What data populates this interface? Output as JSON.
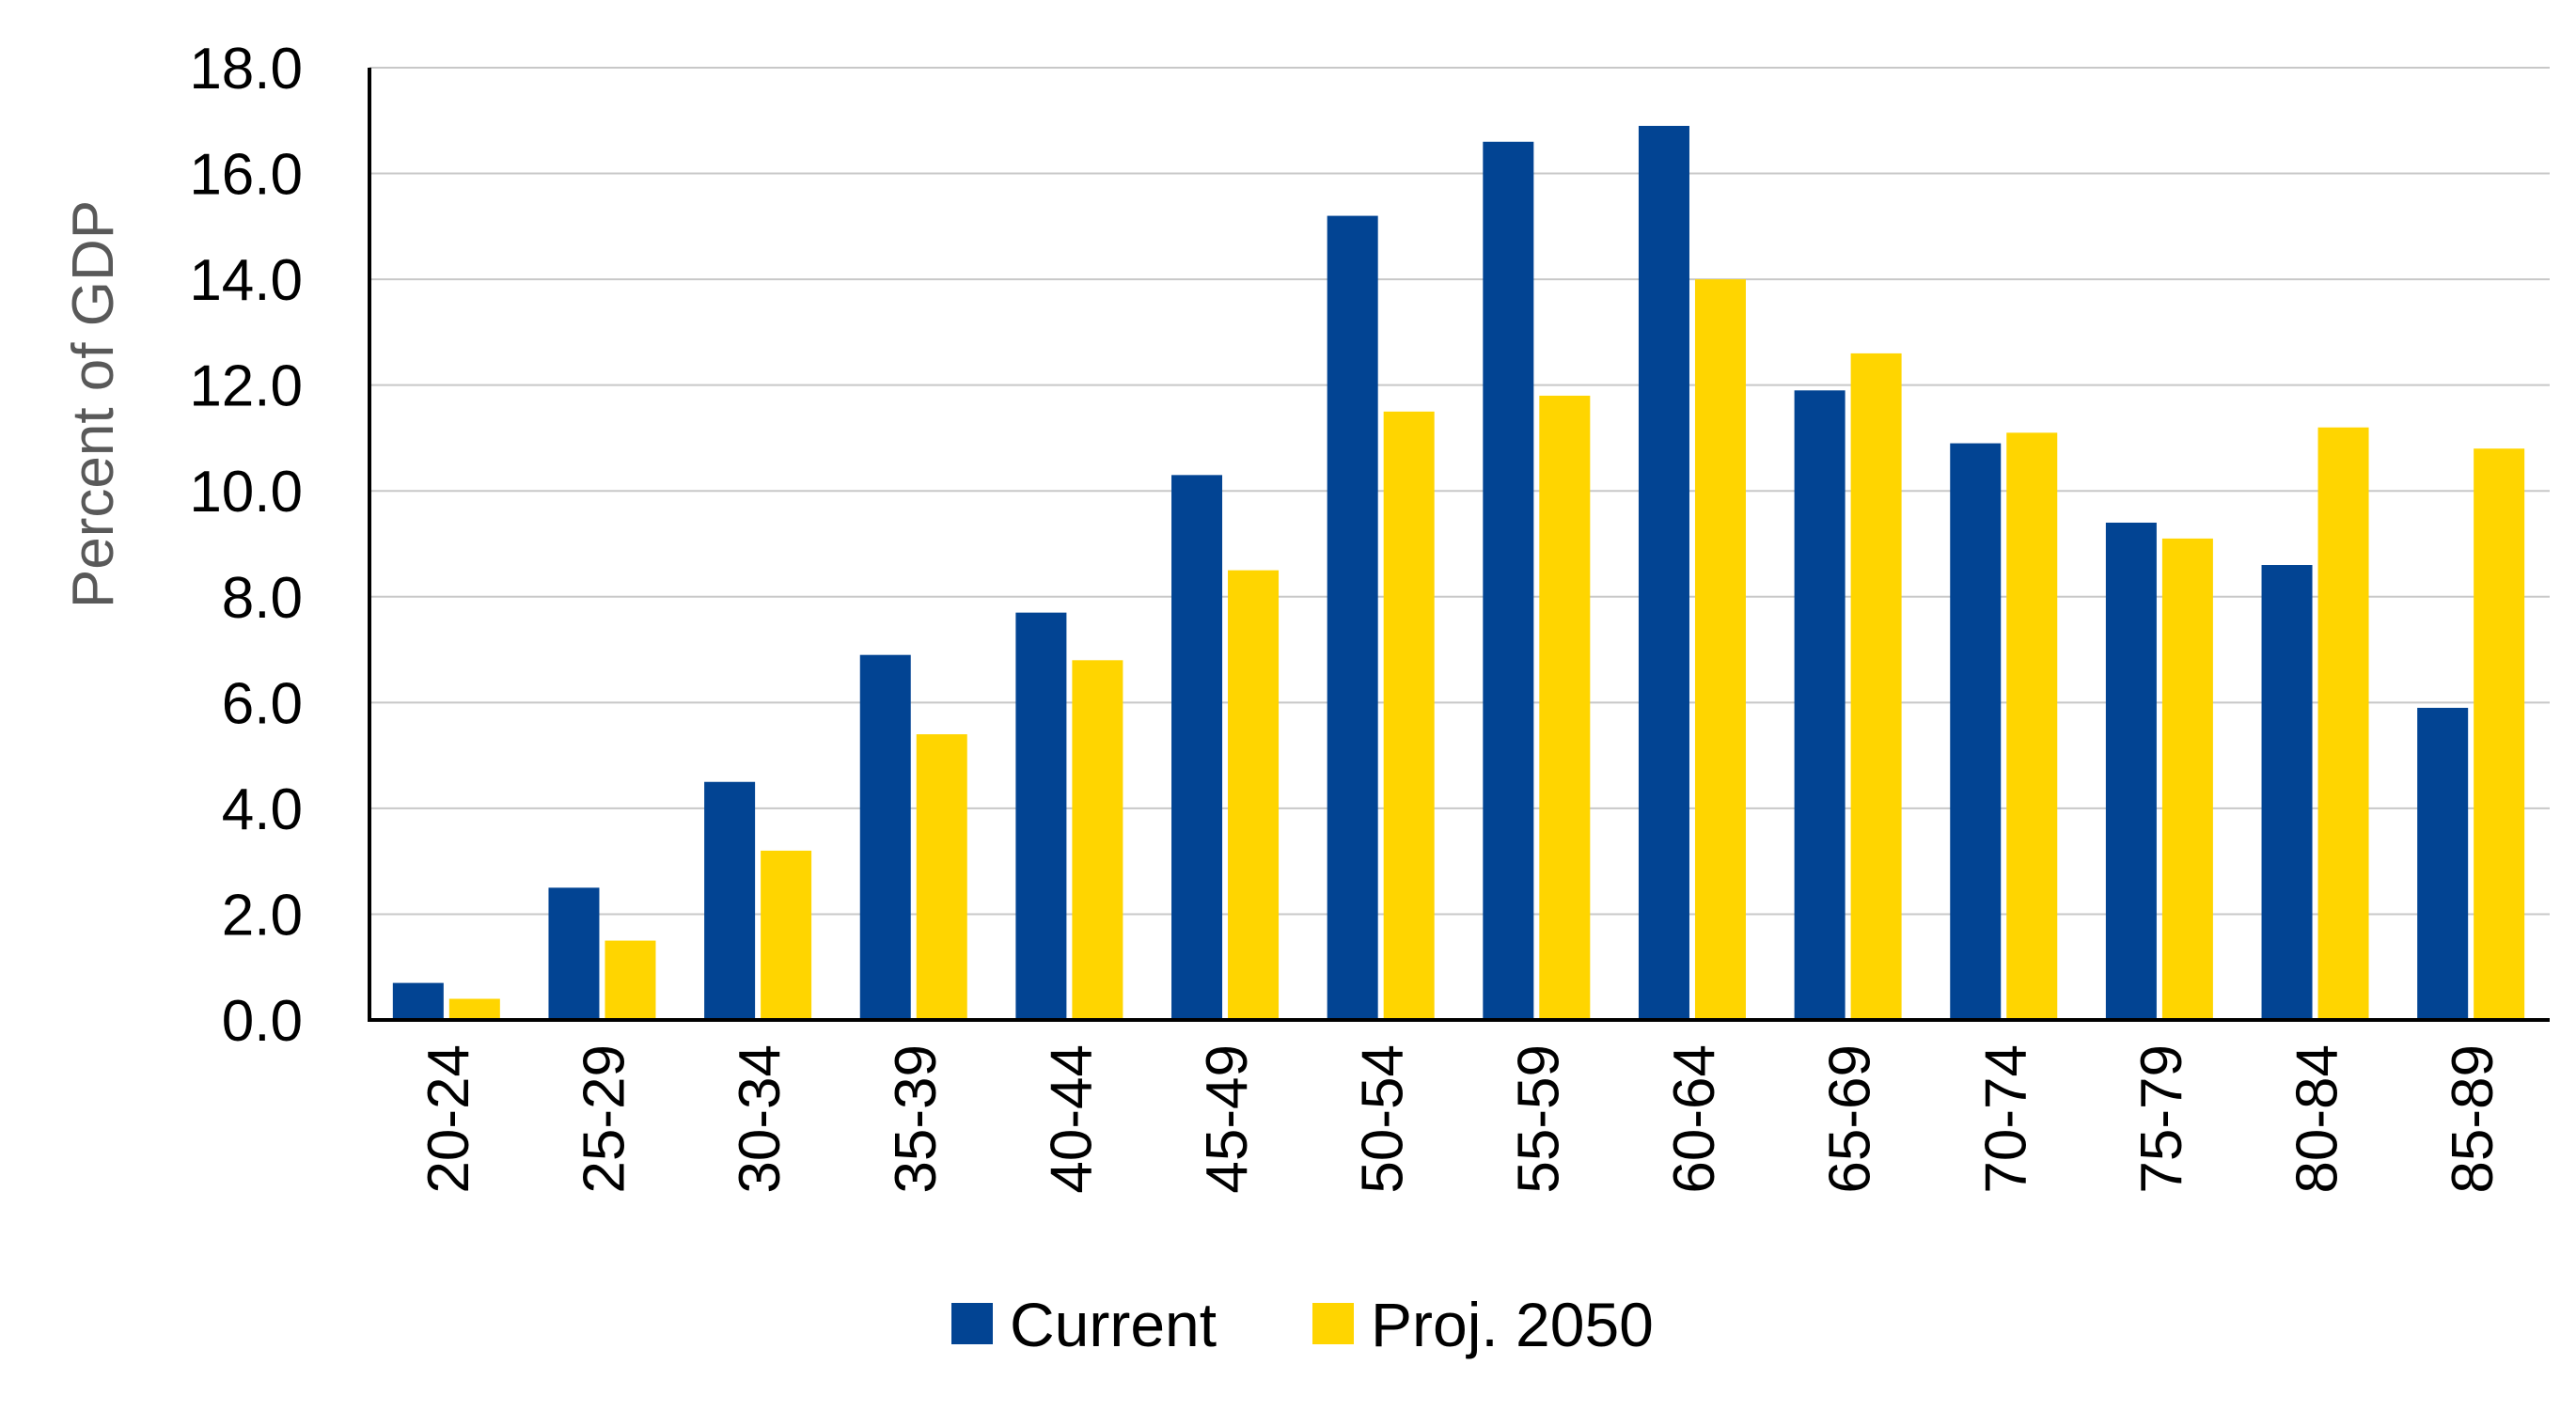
{
  "chart_data": {
    "type": "bar",
    "title": "",
    "xlabel": "",
    "ylabel": "Percent of GDP",
    "ylim": [
      0,
      18
    ],
    "yticks": [
      "0.0",
      "2.0",
      "4.0",
      "6.0",
      "8.0",
      "10.0",
      "12.0",
      "14.0",
      "16.0",
      "18.0"
    ],
    "grid": true,
    "legend_position": "bottom",
    "categories": [
      "20-24",
      "25-29",
      "30-34",
      "35-39",
      "40-44",
      "45-49",
      "50-54",
      "55-59",
      "60-64",
      "65-69",
      "70-74",
      "75-79",
      "80-84",
      "85-89"
    ],
    "series": [
      {
        "name": "Current",
        "color": "#024493",
        "values": [
          0.7,
          2.5,
          4.5,
          6.9,
          7.7,
          10.3,
          15.2,
          16.6,
          16.9,
          11.9,
          10.9,
          9.4,
          8.6,
          5.9
        ]
      },
      {
        "name": "Proj. 2050",
        "color": "#FFD500",
        "values": [
          0.4,
          1.5,
          3.2,
          5.4,
          6.8,
          8.5,
          11.5,
          11.8,
          14.0,
          12.6,
          11.1,
          9.1,
          11.2,
          10.8
        ]
      }
    ]
  }
}
